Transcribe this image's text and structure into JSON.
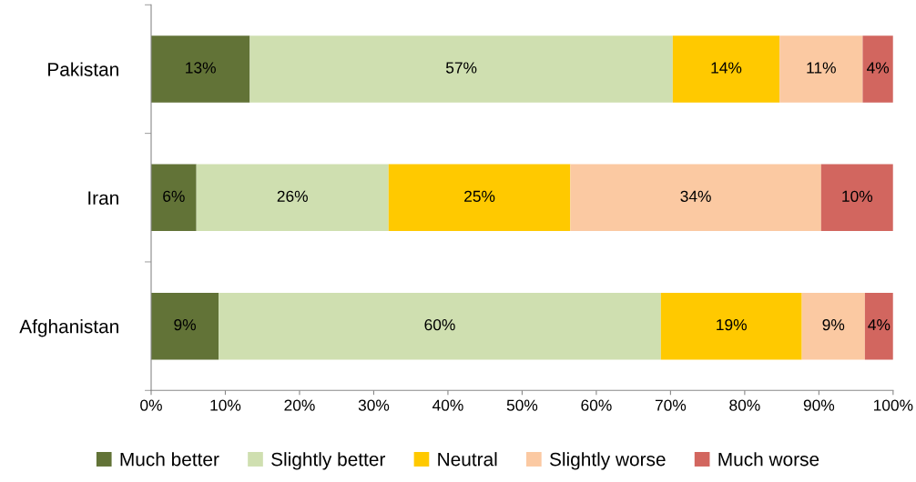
{
  "chart_data": {
    "type": "bar",
    "orientation": "horizontal",
    "stacked": true,
    "categories": [
      "Pakistan",
      "Iran",
      "Afghanistan"
    ],
    "series": [
      {
        "name": "Much better",
        "color": "#627337",
        "values": [
          13.3,
          6.1,
          9.1
        ],
        "value_labels": [
          "13%",
          "6%",
          "9%"
        ]
      },
      {
        "name": "Slightly better",
        "color": "#cfdfb0",
        "values": [
          57.0,
          25.9,
          59.6
        ],
        "value_labels": [
          "57%",
          "26%",
          "60%"
        ]
      },
      {
        "name": "Neutral",
        "color": "#ffc900",
        "values": [
          14.4,
          24.5,
          19.0
        ],
        "value_labels": [
          "14%",
          "25%",
          "19%"
        ]
      },
      {
        "name": "Slightly worse",
        "color": "#fbc9a2",
        "values": [
          11.2,
          33.8,
          8.5
        ],
        "value_labels": [
          "11%",
          "34%",
          "9%"
        ]
      },
      {
        "name": "Much worse",
        "color": "#d2665f",
        "values": [
          4.1,
          9.7,
          3.8
        ],
        "value_labels": [
          "4%",
          "10%",
          "4%"
        ]
      }
    ],
    "xlim": [
      0,
      100
    ],
    "xticks": [
      {
        "value": 0,
        "label": "0%"
      },
      {
        "value": 10,
        "label": "10%"
      },
      {
        "value": 20,
        "label": "20%"
      },
      {
        "value": 30,
        "label": "30%"
      },
      {
        "value": 40,
        "label": "40%"
      },
      {
        "value": 50,
        "label": "50%"
      },
      {
        "value": 60,
        "label": "60%"
      },
      {
        "value": 70,
        "label": "70%"
      },
      {
        "value": 80,
        "label": "80%"
      },
      {
        "value": 90,
        "label": "90%"
      },
      {
        "value": 100,
        "label": "100%"
      }
    ],
    "grid": false,
    "legend": "bottom"
  }
}
